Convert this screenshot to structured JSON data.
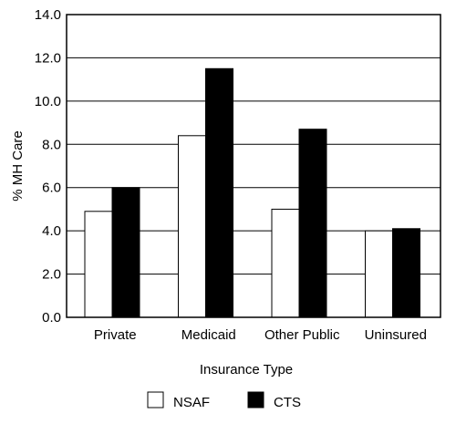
{
  "chart_data": {
    "type": "bar",
    "title": "",
    "xlabel": "Insurance Type",
    "ylabel": "% MH Care",
    "ylim": [
      0,
      14
    ],
    "yticks": [
      "0.0",
      "2.0",
      "4.0",
      "6.0",
      "8.0",
      "10.0",
      "12.0",
      "14.0"
    ],
    "grid": true,
    "legend_position": "bottom",
    "categories": [
      "Private",
      "Medicaid",
      "Other Public",
      "Uninsured"
    ],
    "series": [
      {
        "name": "NSAF",
        "color": "#ffffff",
        "values": [
          4.9,
          8.4,
          5.0,
          4.0
        ]
      },
      {
        "name": "CTS",
        "color": "#000000",
        "values": [
          6.0,
          11.5,
          8.7,
          4.1
        ]
      }
    ]
  }
}
